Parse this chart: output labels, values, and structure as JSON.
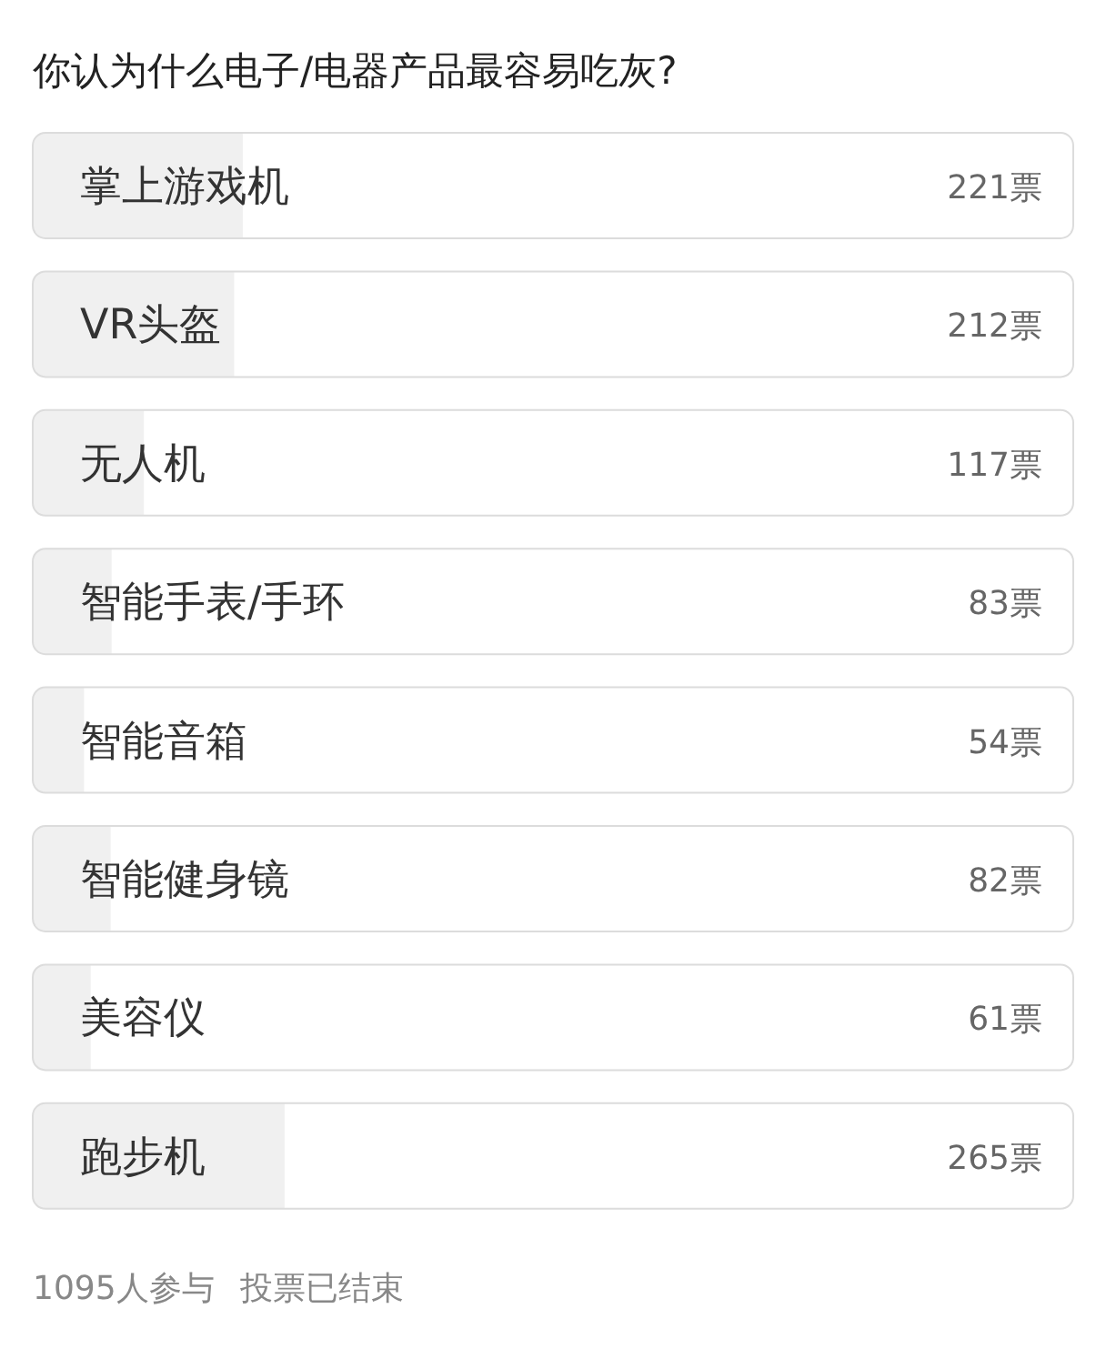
{
  "chart_data": {
    "type": "bar",
    "orientation": "horizontal",
    "title": "你认为什么电子/电器产品最容易吃灰?",
    "categories": [
      "掌上游戏机",
      "VR头盔",
      "无人机",
      "智能手表/手环",
      "智能音箱",
      "智能健身镜",
      "美容仪",
      "跑步机"
    ],
    "values": [
      221,
      212,
      117,
      83,
      54,
      82,
      61,
      265
    ],
    "value_labels": [
      "221票",
      "212票",
      "117票",
      "83票",
      "54票",
      "82票",
      "61票",
      "265票"
    ],
    "color": "#f0f0f0",
    "annotations": [
      "1095人参与",
      "投票已结束"
    ]
  }
}
